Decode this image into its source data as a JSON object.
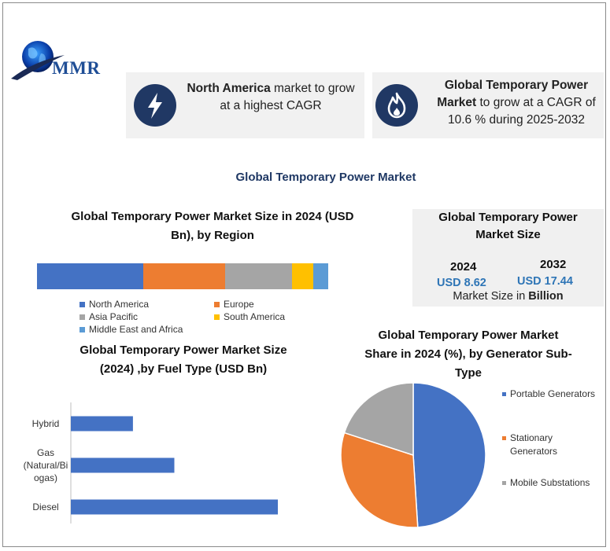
{
  "brand": {
    "logo_text": "MMR"
  },
  "colors": {
    "navy": "#203864",
    "blue": "#4472c4",
    "orange": "#ed7d31",
    "gray": "#a5a5a5",
    "gold": "#ffc000",
    "light_blue": "#5b9bd5",
    "accent_text": "#2e75b6"
  },
  "highlights": [
    {
      "icon": "lightning-icon",
      "bold": "North America",
      "text": " market to grow at a highest CAGR"
    },
    {
      "icon": "flame-icon",
      "bold": "Global Temporary Power Market",
      "text": " to grow at a CAGR of 10.6 % during 2025-2032"
    }
  ],
  "main_title": "Global Temporary Power Market",
  "market_size": {
    "title": "Global Temporary Power Market Size",
    "year1": "2024",
    "value1": "USD 8.62",
    "year2": "2032",
    "value2": "USD 17.44",
    "note_prefix": "Market Size in ",
    "note_bold": "Billion"
  },
  "chart_data": [
    {
      "type": "bar",
      "orientation": "horizontal-stacked",
      "title": "Global Temporary Power Market Size  in 2024 (USD Bn), by Region",
      "series": [
        {
          "name": "North America",
          "value": 36.5,
          "color": "#4472c4"
        },
        {
          "name": "Europe",
          "value": 28,
          "color": "#ed7d31"
        },
        {
          "name": "Asia Pacific",
          "value": 23,
          "color": "#a5a5a5"
        },
        {
          "name": "South America",
          "value": 7.5,
          "color": "#ffc000"
        },
        {
          "name": "Middle East and Africa",
          "value": 5,
          "color": "#5b9bd5"
        }
      ],
      "legend": "bottom"
    },
    {
      "type": "bar",
      "orientation": "horizontal",
      "title": "Global Temporary Power Market Size (2024) ,by Fuel Type (USD Bn)",
      "categories": [
        "Hybrid",
        "Gas (Natural/Biogas)",
        "Diesel"
      ],
      "category_lines": [
        [
          "Hybrid"
        ],
        [
          "Gas",
          "(Natural/Bi",
          "ogas)"
        ],
        [
          "Diesel"
        ]
      ],
      "values": [
        1.2,
        2.0,
        4.0
      ],
      "xlim": [
        0,
        4.3
      ],
      "color": "#4472c4"
    },
    {
      "type": "pie",
      "title": "Global Temporary Power Market Share in 2024 (%), by Generator Sub-Type",
      "labels": [
        "Portable Generators",
        "Stationary Generators",
        "Mobile Substations"
      ],
      "values": [
        49,
        31,
        20
      ],
      "colors": [
        "#4472c4",
        "#ed7d31",
        "#a5a5a5"
      ],
      "legend": "right"
    }
  ]
}
